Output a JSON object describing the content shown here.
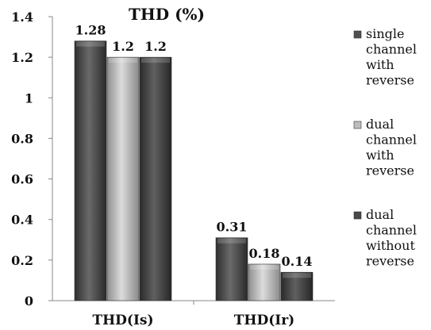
{
  "chart_data": {
    "type": "bar",
    "title": "THD (%)",
    "categories": [
      "THD(Is)",
      "THD(Ir)"
    ],
    "series": [
      {
        "name": "single channel with reverse",
        "values": [
          1.28,
          0.31
        ],
        "color": "#505050",
        "legend_lines": [
          "single",
          "channel",
          "with",
          "reverse"
        ]
      },
      {
        "name": "dual channel with reverse",
        "values": [
          1.2,
          0.18
        ],
        "color": "#bdbdbd",
        "legend_lines": [
          "dual",
          "channel",
          "with",
          "reverse"
        ]
      },
      {
        "name": "dual channel without reverse",
        "values": [
          1.2,
          0.14
        ],
        "color": "#4a4a4a",
        "legend_lines": [
          "dual",
          "channel",
          "without",
          "reverse"
        ]
      }
    ],
    "data_labels": [
      [
        "1.28",
        "0.31"
      ],
      [
        "1.2",
        "0.18"
      ],
      [
        "1.2",
        "0.14"
      ]
    ],
    "y_ticks": [
      "0",
      "0.2",
      "0.4",
      "0.6",
      "0.8",
      "1",
      "1.2",
      "1.4"
    ],
    "ylim": [
      0,
      1.4
    ],
    "xlabel": "",
    "ylabel": "",
    "grid": false,
    "legend_position": "right"
  }
}
